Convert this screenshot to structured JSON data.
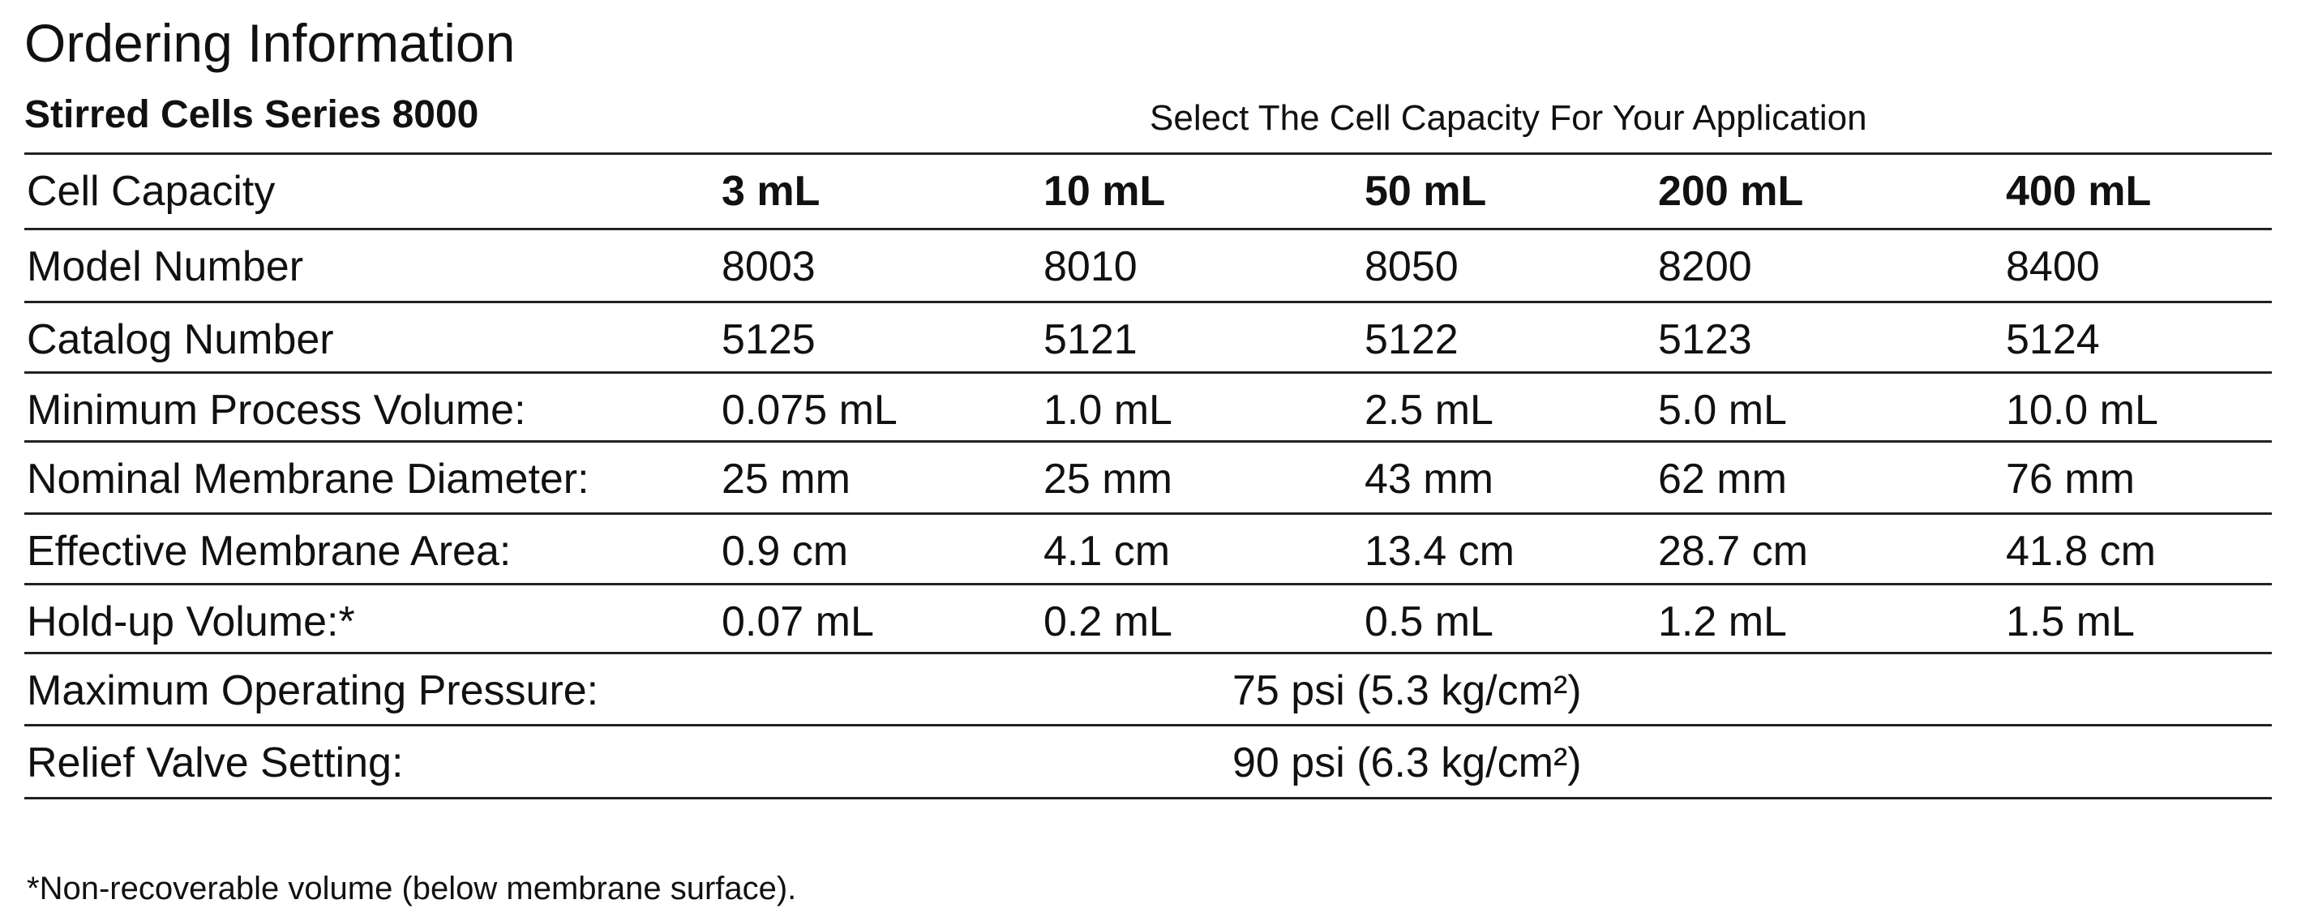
{
  "header": {
    "title": "Ordering Information",
    "subtitle": "Stirred Cells Series 8000",
    "caption": "Select The Cell Capacity For Your Application"
  },
  "table": {
    "columns": [
      "Cell Capacity",
      "3 mL",
      "10 mL",
      "50 mL",
      "200 mL",
      "400 mL"
    ],
    "rows": [
      [
        "Model Number",
        "8003",
        "8010",
        "8050",
        "8200",
        "8400"
      ],
      [
        "Catalog Number",
        "5125",
        "5121",
        "5122",
        "5123",
        "5124"
      ],
      [
        "Minimum Process Volume:",
        "0.075 mL",
        "1.0 mL",
        "2.5 mL",
        "5.0 mL",
        "10.0 mL"
      ],
      [
        "Nominal Membrane Diameter:",
        "25 mm",
        "25 mm",
        "43 mm",
        "62 mm",
        "76 mm"
      ],
      [
        "Effective Membrane Area:",
        "0.9 cm",
        "4.1 cm",
        "13.4 cm",
        "28.7 cm",
        "41.8 cm"
      ],
      [
        "Hold-up Volume:*",
        "0.07 mL",
        "0.2 mL",
        "0.5 mL",
        "1.2 mL",
        "1.5 mL"
      ]
    ],
    "merged_rows": [
      {
        "label": "Maximum Operating Pressure:",
        "value": "75 psi (5.3 kg/cm²)"
      },
      {
        "label": "Relief Valve Setting:",
        "value": "90 psi (6.3 kg/cm²)"
      }
    ]
  },
  "footnote": "*Non-recoverable volume (below membrane surface)."
}
